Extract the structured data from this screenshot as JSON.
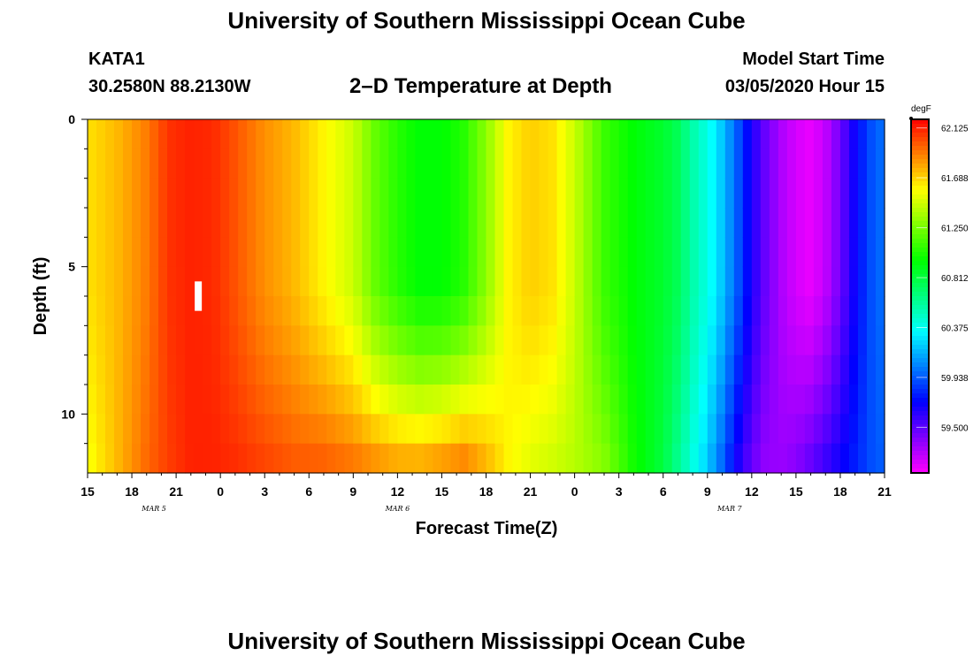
{
  "header": {
    "title_top": "University of Southern Mississippi Ocean Cube",
    "title_bottom": "University of Southern Mississippi Ocean Cube",
    "station": "KATA1",
    "coords": "30.2580N 88.2130W",
    "plot_title": "2–D Temperature at Depth",
    "model_label": "Model Start Time",
    "model_time": "03/05/2020 Hour 15"
  },
  "chart_data": {
    "type": "heatmap",
    "title": "2–D Temperature at Depth",
    "xlabel": "Forecast Time(Z)",
    "ylabel": "Depth (ft)",
    "xlim": [
      15,
      69
    ],
    "ylim": [
      0,
      12
    ],
    "x_ticks": [
      15,
      18,
      21,
      24,
      27,
      30,
      33,
      36,
      39,
      42,
      45,
      48,
      51,
      54,
      57,
      60,
      63,
      66,
      69
    ],
    "x_tick_labels": [
      "15",
      "18",
      "21",
      "0",
      "3",
      "6",
      "9",
      "12",
      "15",
      "18",
      "21",
      "0",
      "3",
      "6",
      "9",
      "12",
      "15",
      "18",
      "21"
    ],
    "date_labels": [
      {
        "text": "MAR 5",
        "x": 19.5
      },
      {
        "text": "MAR 6",
        "x": 36
      },
      {
        "text": "MAR 7",
        "x": 58.5
      }
    ],
    "y_ticks": [
      0,
      5,
      10
    ],
    "y_tick_labels": [
      "0",
      "5",
      "10"
    ],
    "colorbar": {
      "unit": "degF",
      "min": 59.1,
      "max": 62.2,
      "tick_values": [
        62.125,
        61.688,
        61.25,
        60.812,
        60.375,
        59.938,
        59.5
      ],
      "tick_labels": [
        "62.125",
        "61.688",
        "61.250",
        "60.812",
        "60.375",
        "59.938",
        "59.500"
      ]
    },
    "profile_x": [
      15,
      17,
      19,
      20.5,
      22,
      23.5,
      25,
      27,
      29,
      31,
      33,
      34.5,
      36,
      37.5,
      39,
      40.5,
      42,
      43.5,
      45,
      46.5,
      48,
      50,
      52,
      54,
      55,
      56,
      57,
      58,
      59,
      60,
      61,
      62,
      63,
      64,
      65,
      66,
      67,
      68,
      69
    ],
    "profile_surface_temp": [
      61.65,
      61.75,
      61.9,
      62.08,
      62.12,
      62.1,
      62.0,
      61.85,
      61.75,
      61.6,
      61.45,
      61.2,
      61.05,
      60.95,
      60.95,
      61.05,
      61.3,
      61.6,
      61.7,
      61.65,
      61.45,
      61.1,
      60.95,
      60.85,
      60.75,
      60.55,
      60.4,
      60.2,
      59.95,
      59.65,
      59.45,
      59.3,
      59.2,
      59.15,
      59.25,
      59.45,
      59.7,
      59.9,
      60.0
    ],
    "profile_bottom_temp": [
      61.55,
      61.75,
      61.95,
      62.05,
      62.12,
      62.12,
      62.1,
      62.05,
      62.0,
      62.0,
      61.95,
      61.9,
      61.85,
      61.85,
      61.9,
      61.95,
      61.8,
      61.6,
      61.5,
      61.45,
      61.4,
      61.3,
      61.0,
      60.8,
      60.6,
      60.4,
      60.2,
      59.95,
      59.65,
      59.45,
      59.35,
      59.35,
      59.4,
      59.5,
      59.6,
      59.7,
      59.8,
      59.9,
      59.95
    ],
    "marker": {
      "x": 22.5,
      "depth_top": 5.5,
      "depth_bottom": 6.5
    }
  }
}
